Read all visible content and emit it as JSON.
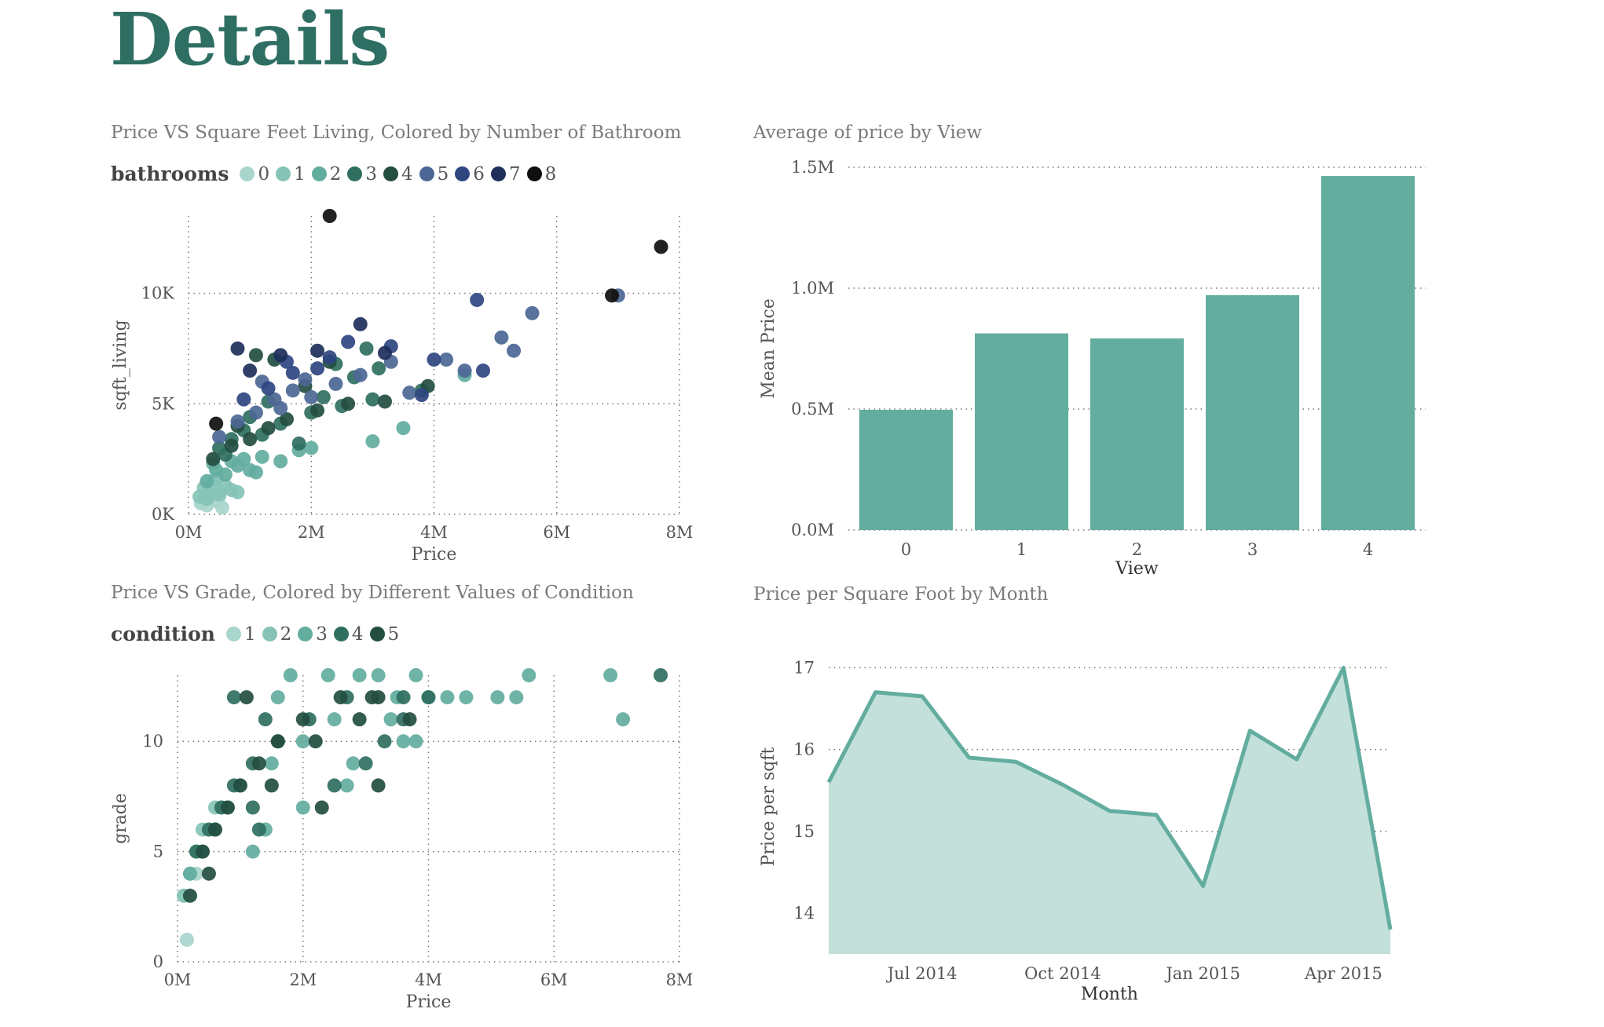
{
  "page": {
    "title": "Details"
  },
  "panels": {
    "scatter_bath": {
      "title": "Price VS Square Feet Living, Colored by Number of Bathroom"
    },
    "bar_view": {
      "title": "Average of price by View"
    },
    "scatter_grade": {
      "title": "Price VS Grade, Colored by Different Values of Condition"
    },
    "area_month": {
      "title": "Price per Square Foot by Month"
    }
  },
  "legends": {
    "bathrooms": {
      "title": "bathrooms",
      "items": [
        {
          "label": "0",
          "color": "#a8d5cc"
        },
        {
          "label": "1",
          "color": "#86c3b6"
        },
        {
          "label": "2",
          "color": "#63ad9f"
        },
        {
          "label": "3",
          "color": "#2f6f5f"
        },
        {
          "label": "4",
          "color": "#234d40"
        },
        {
          "label": "5",
          "color": "#4c6795"
        },
        {
          "label": "6",
          "color": "#2e4580"
        },
        {
          "label": "7",
          "color": "#1d2f5a"
        },
        {
          "label": "8",
          "color": "#0f0f0f"
        }
      ]
    },
    "condition": {
      "title": "condition",
      "items": [
        {
          "label": "1",
          "color": "#a8d5cc"
        },
        {
          "label": "2",
          "color": "#86c3b6"
        },
        {
          "label": "3",
          "color": "#63ad9f"
        },
        {
          "label": "4",
          "color": "#2f6f5f"
        },
        {
          "label": "5",
          "color": "#234d40"
        }
      ]
    }
  },
  "chart_data": [
    {
      "id": "scatter_bath",
      "type": "scatter",
      "title": "Price VS Square Feet Living, Colored by Number of Bathroom",
      "xlabel": "Price",
      "ylabel": "sqft_living",
      "xlim": [
        0,
        8000000
      ],
      "ylim": [
        0,
        13500
      ],
      "xticks": [
        0,
        2000000,
        4000000,
        6000000,
        8000000
      ],
      "xtick_labels": [
        "0M",
        "2M",
        "4M",
        "6M",
        "8M"
      ],
      "yticks": [
        0,
        5000,
        10000
      ],
      "ytick_labels": [
        "0K",
        "5K",
        "10K"
      ],
      "grid": true,
      "legend_title": "bathrooms",
      "legend_position": "top-left",
      "series": [
        {
          "name": "0",
          "color": "#a8d5cc",
          "points": [
            [
              200000,
              500
            ],
            [
              250000,
              700
            ],
            [
              300000,
              400
            ],
            [
              350000,
              900
            ],
            [
              450000,
              600
            ],
            [
              500000,
              800
            ],
            [
              550000,
              300
            ]
          ]
        },
        {
          "name": "1",
          "color": "#86c3b6",
          "points": [
            [
              180000,
              800
            ],
            [
              250000,
              1200
            ],
            [
              320000,
              1000
            ],
            [
              400000,
              1400
            ],
            [
              500000,
              900
            ],
            [
              600000,
              1300
            ],
            [
              700000,
              1100
            ],
            [
              800000,
              1000
            ],
            [
              300000,
              700
            ],
            [
              450000,
              1600
            ]
          ]
        },
        {
          "name": "2",
          "color": "#63ad9f",
          "points": [
            [
              300000,
              1500
            ],
            [
              450000,
              2000
            ],
            [
              600000,
              1800
            ],
            [
              800000,
              2200
            ],
            [
              1000000,
              2000
            ],
            [
              1200000,
              2600
            ],
            [
              1500000,
              2400
            ],
            [
              1800000,
              2900
            ],
            [
              2000000,
              3000
            ],
            [
              900000,
              2500
            ],
            [
              700000,
              2400
            ],
            [
              1100000,
              1900
            ],
            [
              400000,
              2300
            ],
            [
              3000000,
              3300
            ],
            [
              3500000,
              3900
            ],
            [
              4500000,
              6300
            ]
          ]
        },
        {
          "name": "3",
          "color": "#2f6f5f",
          "points": [
            [
              500000,
              3000
            ],
            [
              700000,
              3400
            ],
            [
              900000,
              3800
            ],
            [
              1200000,
              3600
            ],
            [
              1500000,
              4100
            ],
            [
              2000000,
              4600
            ],
            [
              2500000,
              4900
            ],
            [
              3000000,
              5200
            ],
            [
              600000,
              2700
            ],
            [
              1800000,
              3200
            ],
            [
              2200000,
              5300
            ],
            [
              2700000,
              6200
            ],
            [
              3100000,
              6600
            ],
            [
              1000000,
              4400
            ],
            [
              1300000,
              5100
            ],
            [
              3800000,
              5600
            ],
            [
              2900000,
              7500
            ],
            [
              2400000,
              6800
            ]
          ]
        },
        {
          "name": "4",
          "color": "#234d40",
          "points": [
            [
              400000,
              2500
            ],
            [
              700000,
              3100
            ],
            [
              1000000,
              3400
            ],
            [
              1300000,
              3900
            ],
            [
              1600000,
              4300
            ],
            [
              2100000,
              4700
            ],
            [
              2600000,
              5000
            ],
            [
              3200000,
              5100
            ],
            [
              800000,
              4000
            ],
            [
              1900000,
              5800
            ],
            [
              3900000,
              5800
            ],
            [
              2300000,
              6900
            ],
            [
              1400000,
              7000
            ],
            [
              1100000,
              7200
            ]
          ]
        },
        {
          "name": "5",
          "color": "#4c6795",
          "points": [
            [
              500000,
              3500
            ],
            [
              800000,
              4200
            ],
            [
              1100000,
              4600
            ],
            [
              1400000,
              5200
            ],
            [
              1700000,
              5600
            ],
            [
              2000000,
              5300
            ],
            [
              2400000,
              5900
            ],
            [
              2800000,
              6300
            ],
            [
              3300000,
              6900
            ],
            [
              1500000,
              4800
            ],
            [
              1900000,
              6100
            ],
            [
              4200000,
              7000
            ],
            [
              4500000,
              6500
            ],
            [
              5100000,
              8000
            ],
            [
              5300000,
              7400
            ],
            [
              5600000,
              9100
            ],
            [
              7000000,
              9900
            ],
            [
              1200000,
              6000
            ],
            [
              3600000,
              5500
            ]
          ]
        },
        {
          "name": "6",
          "color": "#2e4580",
          "points": [
            [
              900000,
              5200
            ],
            [
              1300000,
              5700
            ],
            [
              1700000,
              6400
            ],
            [
              2300000,
              7100
            ],
            [
              2600000,
              7800
            ],
            [
              3300000,
              7600
            ],
            [
              4000000,
              7000
            ],
            [
              4700000,
              9700
            ],
            [
              1600000,
              6900
            ],
            [
              3800000,
              5400
            ],
            [
              2100000,
              6600
            ],
            [
              4800000,
              6500
            ]
          ]
        },
        {
          "name": "7",
          "color": "#1d2f5a",
          "points": [
            [
              1000000,
              6500
            ],
            [
              1500000,
              7200
            ],
            [
              2100000,
              7400
            ],
            [
              2800000,
              8600
            ],
            [
              3200000,
              7300
            ],
            [
              800000,
              7500
            ]
          ]
        },
        {
          "name": "8",
          "color": "#0f0f0f",
          "points": [
            [
              450000,
              4100
            ],
            [
              2300000,
              13500
            ],
            [
              6900000,
              9900
            ],
            [
              7700000,
              12100
            ]
          ]
        }
      ]
    },
    {
      "id": "bar_view",
      "type": "bar",
      "title": "Average of price by View",
      "xlabel": "View",
      "ylabel": "Mean Price",
      "categories": [
        "0",
        "1",
        "2",
        "3",
        "4"
      ],
      "values": [
        0.497,
        0.813,
        0.792,
        0.971,
        1.464
      ],
      "value_unit": "M",
      "ylim": [
        0,
        1.5
      ],
      "yticks": [
        0,
        0.5,
        1.0,
        1.5
      ],
      "ytick_labels": [
        "0.0M",
        "0.5M",
        "1.0M",
        "1.5M"
      ],
      "grid": true,
      "color": "#63ad9f"
    },
    {
      "id": "scatter_grade",
      "type": "scatter",
      "title": "Price VS Grade, Colored by Different Values of Condition",
      "xlabel": "Price",
      "ylabel": "grade",
      "xlim": [
        0,
        8000000
      ],
      "ylim": [
        0,
        13
      ],
      "xticks": [
        0,
        2000000,
        4000000,
        6000000,
        8000000
      ],
      "xtick_labels": [
        "0M",
        "2M",
        "4M",
        "6M",
        "8M"
      ],
      "yticks": [
        0,
        5,
        10
      ],
      "ytick_labels": [
        "0",
        "5",
        "10"
      ],
      "grid": true,
      "legend_title": "condition",
      "legend_position": "top-left",
      "series": [
        {
          "name": "1",
          "color": "#a8d5cc",
          "points": [
            [
              150000,
              1
            ],
            [
              100000,
              3
            ],
            [
              300000,
              4
            ]
          ]
        },
        {
          "name": "2",
          "color": "#86c3b6",
          "points": [
            [
              100000,
              3
            ],
            [
              200000,
              4
            ],
            [
              300000,
              5
            ],
            [
              400000,
              6
            ],
            [
              600000,
              7
            ]
          ]
        },
        {
          "name": "3",
          "color": "#63ad9f",
          "points": [
            [
              200000,
              4
            ],
            [
              400000,
              5
            ],
            [
              600000,
              6
            ],
            [
              800000,
              7
            ],
            [
              1000000,
              8
            ],
            [
              1500000,
              9
            ],
            [
              2000000,
              10
            ],
            [
              2500000,
              11
            ],
            [
              3500000,
              12
            ],
            [
              1800000,
              13
            ],
            [
              2400000,
              13
            ],
            [
              2900000,
              13
            ],
            [
              3200000,
              13
            ],
            [
              3800000,
              13
            ],
            [
              5600000,
              13
            ],
            [
              6900000,
              13
            ],
            [
              4000000,
              12
            ],
            [
              4300000,
              12
            ],
            [
              4600000,
              12
            ],
            [
              5100000,
              12
            ],
            [
              5400000,
              12
            ],
            [
              7100000,
              11
            ],
            [
              3600000,
              10
            ],
            [
              3800000,
              10
            ],
            [
              2800000,
              9
            ],
            [
              2700000,
              8
            ],
            [
              2000000,
              7
            ],
            [
              1400000,
              6
            ],
            [
              1200000,
              5
            ],
            [
              3400000,
              11
            ],
            [
              1600000,
              12
            ]
          ]
        },
        {
          "name": "4",
          "color": "#2f6f5f",
          "points": [
            [
              300000,
              5
            ],
            [
              500000,
              6
            ],
            [
              700000,
              7
            ],
            [
              900000,
              8
            ],
            [
              1200000,
              9
            ],
            [
              1600000,
              10
            ],
            [
              2100000,
              11
            ],
            [
              2700000,
              12
            ],
            [
              1200000,
              7
            ],
            [
              1300000,
              6
            ],
            [
              2500000,
              8
            ],
            [
              3000000,
              9
            ],
            [
              3300000,
              10
            ],
            [
              3600000,
              12
            ],
            [
              4000000,
              12
            ],
            [
              7700000,
              13
            ],
            [
              3600000,
              11
            ],
            [
              900000,
              12
            ],
            [
              1400000,
              11
            ]
          ]
        },
        {
          "name": "5",
          "color": "#234d40",
          "points": [
            [
              200000,
              3
            ],
            [
              400000,
              5
            ],
            [
              600000,
              6
            ],
            [
              800000,
              7
            ],
            [
              1000000,
              8
            ],
            [
              1300000,
              9
            ],
            [
              1600000,
              10
            ],
            [
              2000000,
              11
            ],
            [
              2600000,
              12
            ],
            [
              3100000,
              12
            ],
            [
              3200000,
              8
            ],
            [
              2300000,
              7
            ],
            [
              1500000,
              8
            ],
            [
              2200000,
              10
            ],
            [
              2900000,
              11
            ],
            [
              3700000,
              11
            ],
            [
              500000,
              4
            ],
            [
              1100000,
              12
            ],
            [
              3200000,
              12
            ]
          ]
        }
      ]
    },
    {
      "id": "area_month",
      "type": "area",
      "title": "Price per Square Foot by Month",
      "xlabel": "Month",
      "ylabel": "Price per sqft",
      "x": [
        "2014-05",
        "2014-06",
        "2014-07",
        "2014-08",
        "2014-09",
        "2014-10",
        "2014-11",
        "2014-12",
        "2015-01",
        "2015-02",
        "2015-03",
        "2015-04",
        "2015-05"
      ],
      "values": [
        15.6,
        16.7,
        16.65,
        15.9,
        15.85,
        15.57,
        15.25,
        15.2,
        14.33,
        16.23,
        15.88,
        17.0,
        13.8
      ],
      "xtick_labels": [
        [
          "2014-07",
          "Jul 2014"
        ],
        [
          "2014-10",
          "Oct 2014"
        ],
        [
          "2015-01",
          "Jan 2015"
        ],
        [
          "2015-04",
          "Apr 2015"
        ]
      ],
      "ylim": [
        13.5,
        17.1
      ],
      "yticks": [
        14,
        15,
        16,
        17
      ],
      "grid": true,
      "line_color": "#63ad9f",
      "fill_color": "#c3e0da"
    }
  ]
}
